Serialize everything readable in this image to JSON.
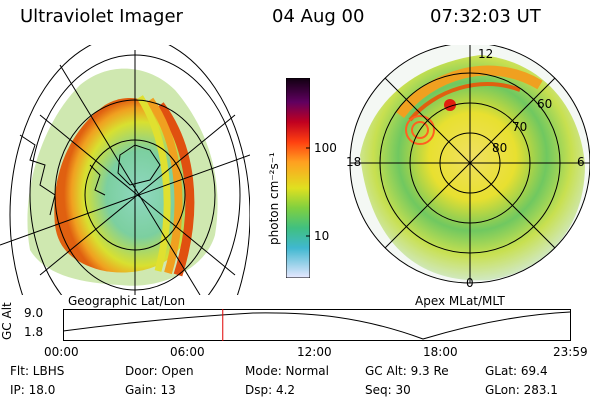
{
  "header": {
    "title": "Ultraviolet Imager",
    "date": "04 Aug 00",
    "time": "07:32:03 UT"
  },
  "colorbar": {
    "unit_label": "photon cm⁻²s⁻¹",
    "ticks": [
      "100",
      "10"
    ]
  },
  "left_map": {
    "label": "Geographic Lat/Lon"
  },
  "right_map": {
    "label": "Apex MLat/MLT",
    "mlt_labels": [
      "12",
      "18",
      "6",
      "0"
    ],
    "lat_labels": [
      "60",
      "70",
      "80"
    ]
  },
  "altitude_plot": {
    "y_title": "GC Alt",
    "y_ticks": [
      "9.0",
      "1.8"
    ],
    "x_ticks": [
      "00:00",
      "06:00",
      "12:00",
      "18:00",
      "23:59"
    ],
    "marker_color": "#e00000",
    "current_fraction": 0.3145
  },
  "info": {
    "flt": "Flt: LBHS",
    "ip": "IP: 18.0",
    "door": "Door: Open",
    "gain": "Gain: 13",
    "mode": "Mode: Normal",
    "dsp": "Dsp:    4.2",
    "gc_alt": "GC Alt: 9.3 Re",
    "seq": "Seq: 30",
    "glat": "GLat:  69.4",
    "glon": "GLon: 283.1"
  }
}
